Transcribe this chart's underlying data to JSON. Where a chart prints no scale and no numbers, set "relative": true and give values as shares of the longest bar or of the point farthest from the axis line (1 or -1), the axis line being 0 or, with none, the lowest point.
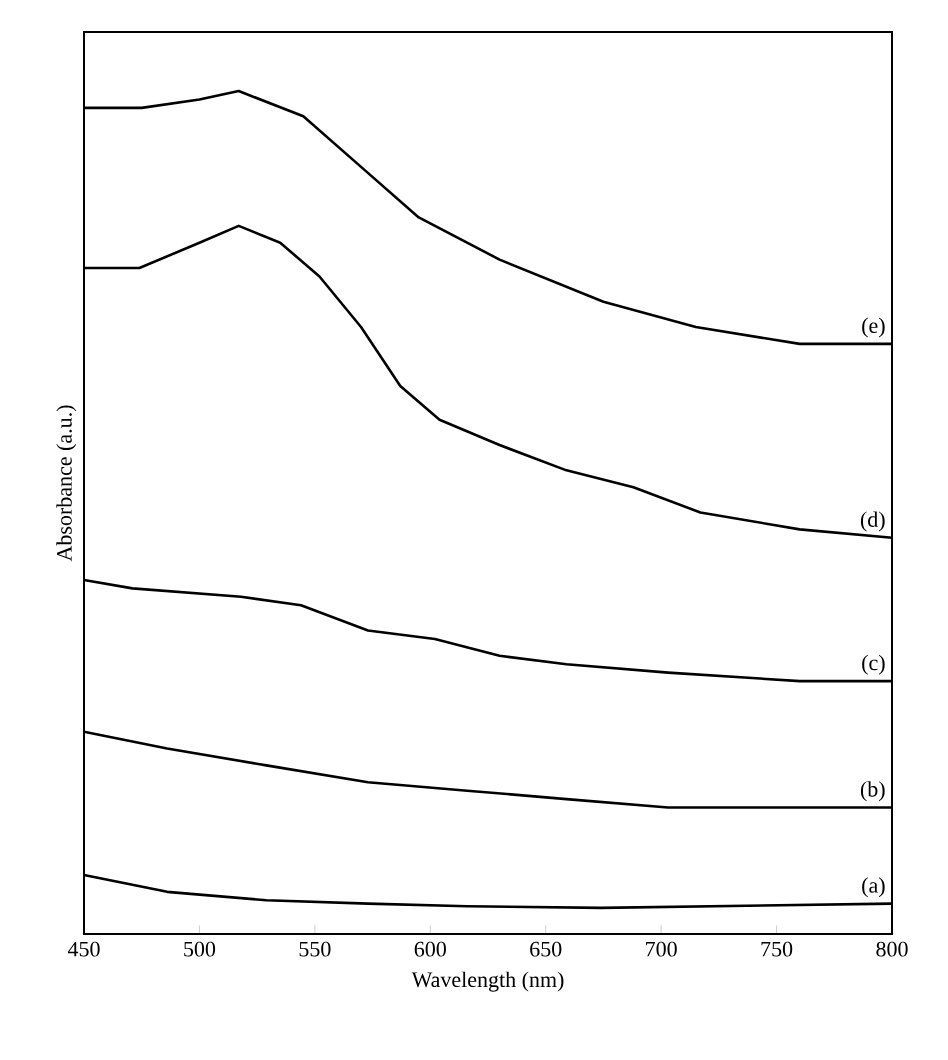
{
  "chart_data": {
    "type": "line",
    "xlabel": "Wavelength (nm)",
    "ylabel": "Absorbance (a.u.)",
    "relative": true,
    "legend": false,
    "grid": false,
    "xlim": [
      450,
      800
    ],
    "xticks": [
      450,
      500,
      550,
      600,
      650,
      700,
      750,
      800
    ],
    "series": [
      {
        "name": "(a)",
        "color": "#000000",
        "x": [
          450,
          486,
          529,
          573,
          616,
          674,
          800
        ],
        "values": [
          0.07,
          0.05,
          0.04,
          0.036,
          0.033,
          0.031,
          0.036
        ]
      },
      {
        "name": "(b)",
        "color": "#000000",
        "x": [
          450,
          486,
          529,
          573,
          616,
          659,
          703,
          800
        ],
        "values": [
          0.24,
          0.22,
          0.2,
          0.18,
          0.17,
          0.16,
          0.15,
          0.15
        ]
      },
      {
        "name": "(c)",
        "color": "#000000",
        "x": [
          450,
          471,
          518,
          544,
          573,
          602,
          630,
          659,
          703,
          760,
          800
        ],
        "values": [
          0.42,
          0.41,
          0.4,
          0.39,
          0.36,
          0.35,
          0.33,
          0.32,
          0.31,
          0.3,
          0.3
        ]
      },
      {
        "name": "(d)",
        "color": "#000000",
        "x": [
          450,
          474,
          500,
          517,
          535,
          552,
          570,
          587,
          604,
          630,
          659,
          688,
          717,
          760,
          800
        ],
        "values": [
          0.79,
          0.79,
          0.82,
          0.84,
          0.82,
          0.78,
          0.72,
          0.65,
          0.61,
          0.58,
          0.55,
          0.53,
          0.5,
          0.48,
          0.47
        ]
      },
      {
        "name": "(e)",
        "color": "#000000",
        "x": [
          450,
          475,
          500,
          517,
          545,
          570,
          595,
          630,
          675,
          715,
          760,
          800
        ],
        "values": [
          0.98,
          0.98,
          0.99,
          1.0,
          0.97,
          0.91,
          0.85,
          0.8,
          0.75,
          0.72,
          0.7,
          0.7
        ]
      }
    ]
  }
}
